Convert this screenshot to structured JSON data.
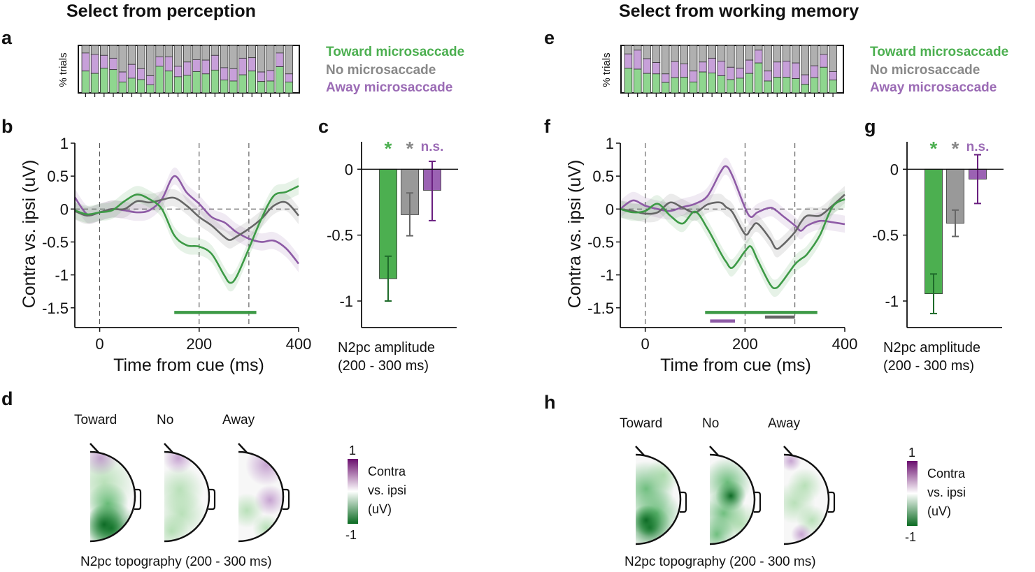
{
  "colors": {
    "toward": "#4caf50",
    "toward_dark": "#2e8b3a",
    "no": "#7f7f7f",
    "no_dark": "#555555",
    "away": "#8e5ba6",
    "away_dark": "#7b3f8f",
    "stack_toward": "#8fd68f",
    "stack_no": "#b0b0b0",
    "stack_away": "#c7a0d9"
  },
  "left": {
    "title": "Select from perception",
    "labels": {
      "a": "a",
      "b": "b",
      "c": "c",
      "d": "d"
    },
    "topo_heads": [
      "Toward",
      "No",
      "Away"
    ],
    "topo_caption": "N2pc topography (200 - 300 ms)",
    "colorbar": {
      "max": "1",
      "min": "-1",
      "label1": "Contra",
      "label2": "vs. ipsi",
      "label3": "(uV)"
    }
  },
  "right": {
    "title": "Select from working memory",
    "labels": {
      "e": "e",
      "f": "f",
      "g": "g",
      "h": "h"
    },
    "topo_heads": [
      "Toward",
      "No",
      "Away"
    ],
    "topo_caption": "N2pc topography (200 - 300 ms)",
    "colorbar": {
      "max": "1",
      "min": "-1",
      "label1": "Contra",
      "label2": "vs. ipsi",
      "label3": "(uV)"
    }
  },
  "legend": [
    "Toward microsaccade",
    "No microsaccade",
    "Away microsaccade"
  ],
  "chart_data": [
    {
      "panel": "a",
      "type": "bar",
      "stacked": true,
      "ylabel": "% trials",
      "series": [
        {
          "name": "Toward microsaccade",
          "values": [
            0.46,
            0.41,
            0.52,
            0.49,
            0.23,
            0.31,
            0.28,
            0.17,
            0.56,
            0.46,
            0.34,
            0.37,
            0.45,
            0.4,
            0.48,
            0.27,
            0.25,
            0.38,
            0.46,
            0.24,
            0.25,
            0.55,
            0.23
          ]
        },
        {
          "name": "Away microsaccade",
          "values": [
            0.38,
            0.4,
            0.27,
            0.24,
            0.21,
            0.29,
            0.23,
            0.19,
            0.2,
            0.3,
            0.22,
            0.28,
            0.25,
            0.29,
            0.31,
            0.26,
            0.26,
            0.35,
            0.28,
            0.2,
            0.22,
            0.29,
            0.17
          ]
        },
        {
          "name": "No microsaccade",
          "values": "remainder"
        }
      ]
    },
    {
      "panel": "e",
      "type": "bar",
      "stacked": true,
      "ylabel": "% trials",
      "series": [
        {
          "name": "Toward microsaccade",
          "values": [
            0.52,
            0.5,
            0.41,
            0.4,
            0.22,
            0.32,
            0.33,
            0.23,
            0.44,
            0.42,
            0.36,
            0.28,
            0.31,
            0.41,
            0.63,
            0.25,
            0.33,
            0.33,
            0.3,
            0.18,
            0.32,
            0.54,
            0.27
          ]
        },
        {
          "name": "Away microsaccade",
          "values": [
            0.3,
            0.4,
            0.31,
            0.24,
            0.18,
            0.34,
            0.28,
            0.23,
            0.21,
            0.31,
            0.31,
            0.26,
            0.21,
            0.28,
            0.27,
            0.21,
            0.32,
            0.34,
            0.33,
            0.2,
            0.25,
            0.27,
            0.18
          ]
        },
        {
          "name": "No microsaccade",
          "values": "remainder"
        }
      ]
    },
    {
      "panel": "b",
      "type": "line",
      "xlabel": "Time from cue (ms)",
      "ylabel": "Contra vs. ipsi (uV)",
      "xlim": [
        -50,
        400
      ],
      "ylim": [
        -1.8,
        1
      ],
      "xticks": [
        "0",
        "200",
        "400"
      ],
      "xtick_values": [
        0,
        200,
        400
      ],
      "yticks": [
        "1",
        "0.5",
        "0",
        "-0.5",
        "-1",
        "-1.5"
      ],
      "ytick_values": [
        1,
        0.5,
        0,
        -0.5,
        -1,
        -1.5
      ],
      "vlines": [
        0,
        200,
        300
      ],
      "hline": 0,
      "sem": 0.13,
      "x": [
        -50,
        -25,
        0,
        25,
        50,
        75,
        100,
        125,
        150,
        175,
        200,
        225,
        250,
        262,
        275,
        300,
        325,
        350,
        375,
        400
      ],
      "series": [
        {
          "name": "Away microsaccade",
          "color": "#8e5ba6",
          "values": [
            0.18,
            -0.08,
            -0.05,
            0,
            -0.02,
            -0.05,
            -0.02,
            0.15,
            0.5,
            0.25,
            0.08,
            -0.12,
            -0.2,
            -0.27,
            -0.35,
            -0.45,
            -0.5,
            -0.48,
            -0.6,
            -0.83
          ]
        },
        {
          "name": "No microsaccade",
          "color": "#666666",
          "values": [
            -0.03,
            -0.1,
            -0.05,
            0,
            0,
            0.12,
            0.1,
            0.14,
            0.17,
            0.05,
            -0.12,
            -0.25,
            -0.42,
            -0.47,
            -0.42,
            -0.3,
            -0.15,
            0.05,
            0.1,
            -0.1
          ]
        },
        {
          "name": "Toward microsaccade",
          "color": "#3d9a46",
          "values": [
            -0.02,
            -0.08,
            -0.05,
            -0.02,
            0.12,
            0.22,
            0.15,
            0.0,
            -0.4,
            -0.55,
            -0.57,
            -0.68,
            -1.0,
            -1.12,
            -1.03,
            -0.6,
            -0.15,
            0.2,
            0.26,
            0.35
          ]
        }
      ],
      "significance": [
        {
          "series": "Toward microsaccade",
          "color": "#3d9a46",
          "from": 150,
          "to": 315,
          "y": -1.57
        }
      ]
    },
    {
      "panel": "f",
      "type": "line",
      "xlabel": "Time from cue (ms)",
      "ylabel": "Contra vs. ipsi (uV)",
      "xlim": [
        -50,
        400
      ],
      "ylim": [
        -1.8,
        1
      ],
      "xticks": [
        "0",
        "200",
        "400"
      ],
      "xtick_values": [
        0,
        200,
        400
      ],
      "yticks": [
        "1",
        "0.5",
        "0",
        "-0.5",
        "-1",
        "-1.5"
      ],
      "ytick_values": [
        1,
        0.5,
        0,
        -0.5,
        -1,
        -1.5
      ],
      "vlines": [
        0,
        200,
        300
      ],
      "hline": 0,
      "sem": 0.13,
      "x": [
        -50,
        -25,
        0,
        25,
        50,
        75,
        100,
        125,
        150,
        162,
        175,
        200,
        212,
        225,
        250,
        262,
        275,
        300,
        312,
        325,
        350,
        375,
        400
      ],
      "series": [
        {
          "name": "Away microsaccade",
          "color": "#8e5ba6",
          "values": [
            0,
            0.13,
            0.05,
            0,
            -0.03,
            0.03,
            0.08,
            0.2,
            0.55,
            0.65,
            0.5,
            0.02,
            -0.12,
            -0.05,
            0.02,
            -0.02,
            -0.1,
            -0.25,
            -0.33,
            -0.25,
            -0.18,
            -0.2,
            -0.23
          ]
        },
        {
          "name": "No microsaccade",
          "color": "#666666",
          "values": [
            0,
            -0.03,
            -0.07,
            -0.05,
            0.1,
            0.02,
            -0.05,
            0.07,
            0.1,
            0.03,
            -0.05,
            -0.38,
            -0.3,
            -0.22,
            -0.45,
            -0.6,
            -0.55,
            -0.35,
            -0.2,
            -0.1,
            -0.1,
            0.05,
            0.22
          ]
        },
        {
          "name": "Toward microsaccade",
          "color": "#3d9a46",
          "values": [
            0,
            -0.05,
            -0.03,
            0.08,
            -0.1,
            -0.22,
            -0.04,
            -0.3,
            -0.65,
            -0.8,
            -0.89,
            -0.64,
            -0.57,
            -0.77,
            -1.14,
            -1.2,
            -1.1,
            -0.84,
            -0.76,
            -0.68,
            -0.4,
            0.03,
            0.15
          ]
        }
      ],
      "significance": [
        {
          "series": "Toward microsaccade",
          "color": "#3d9a46",
          "from": 120,
          "to": 345,
          "y": -1.57
        },
        {
          "series": "No microsaccade",
          "color": "#666666",
          "from": 240,
          "to": 300,
          "y": -1.64
        },
        {
          "series": "Away microsaccade",
          "color": "#8e5ba6",
          "from": 130,
          "to": 180,
          "y": -1.7
        }
      ]
    },
    {
      "panel": "c",
      "type": "bar",
      "xlabel_line1": "N2pc amplitude",
      "xlabel_line2": "(200 - 300 ms)",
      "ylim": [
        -1.2,
        0.2
      ],
      "yticks": [
        "0",
        "-0.5",
        "-1"
      ],
      "ytick_values": [
        0,
        -0.5,
        -1
      ],
      "categories": [
        "Toward",
        "No",
        "Away"
      ],
      "values": [
        -0.83,
        -0.345,
        -0.16
      ],
      "error_low": [
        -1.0,
        -0.505,
        -0.39
      ],
      "error_high": [
        -0.66,
        -0.18,
        0.06
      ],
      "annotations": [
        "*",
        "*",
        "n.s."
      ],
      "bar_colors": [
        "#4caf50",
        "#999999",
        "#9b62b3"
      ],
      "error_colors": [
        "#1e6b2a",
        "#666666",
        "#6a1f80"
      ],
      "annotation_colors": [
        "#4caf50",
        "#888888",
        "#9b6bb5"
      ]
    },
    {
      "panel": "g",
      "type": "bar",
      "xlabel_line1": "N2pc amplitude",
      "xlabel_line2": "(200 - 300 ms)",
      "ylim": [
        -1.2,
        0.2
      ],
      "yticks": [
        "0",
        "-0.5",
        "-1"
      ],
      "ytick_values": [
        0,
        -0.5,
        -1
      ],
      "categories": [
        "Toward",
        "No",
        "Away"
      ],
      "values": [
        -0.945,
        -0.41,
        -0.075
      ],
      "error_low": [
        -1.095,
        -0.51,
        -0.26
      ],
      "error_high": [
        -0.795,
        -0.31,
        0.11
      ],
      "annotations": [
        "*",
        "*",
        "n.s."
      ],
      "bar_colors": [
        "#4caf50",
        "#999999",
        "#9b62b3"
      ],
      "error_colors": [
        "#1e6b2a",
        "#666666",
        "#6a1f80"
      ],
      "annotation_colors": [
        "#4caf50",
        "#888888",
        "#9b6bb5"
      ]
    }
  ]
}
